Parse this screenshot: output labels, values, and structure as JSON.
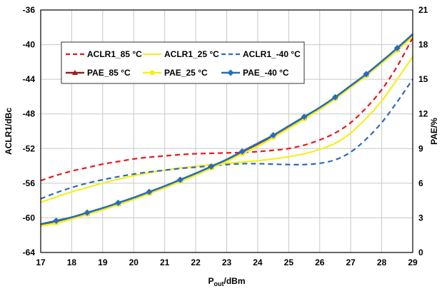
{
  "chart_data": {
    "type": "line",
    "xlabel_main": "P",
    "xlabel_sub": "out",
    "xlabel_rest": "/dBm",
    "ylabel_left": "ACLR1/dBc",
    "ylabel_right": "PAE/%",
    "xlim": [
      17,
      29
    ],
    "ylim_left": [
      -64,
      -36
    ],
    "ylim_right": [
      0,
      21
    ],
    "x_ticks": [
      "17",
      "18",
      "19",
      "20",
      "21",
      "22",
      "23",
      "24",
      "25",
      "26",
      "27",
      "28",
      "29"
    ],
    "y_left_ticks": [
      "-36",
      "-40",
      "-44",
      "-48",
      "-52",
      "-56",
      "-60",
      "-64"
    ],
    "y_right_ticks": [
      "21",
      "18",
      "15",
      "12",
      "9",
      "6",
      "3",
      "0"
    ],
    "grid": true,
    "legend_position": "top-left",
    "x": [
      17,
      17.5,
      18,
      18.5,
      19,
      19.5,
      20,
      20.5,
      21,
      21.5,
      22,
      22.5,
      23,
      23.5,
      24,
      24.5,
      25,
      25.5,
      26,
      26.5,
      27,
      27.5,
      28,
      28.5,
      29
    ],
    "series": [
      {
        "name": "ACLR1_85 °C",
        "axis": "left",
        "color": "#e8171f",
        "style": "dash",
        "marker": "none",
        "values": [
          -55.7,
          -55.1,
          -54.6,
          -54.2,
          -53.8,
          -53.5,
          -53.2,
          -53.0,
          -52.85,
          -52.7,
          -52.6,
          -52.55,
          -52.5,
          -52.45,
          -52.35,
          -52.2,
          -52.0,
          -51.6,
          -51.0,
          -50.2,
          -49.0,
          -47.3,
          -45.2,
          -42.5,
          -39.2
        ]
      },
      {
        "name": "ACLR1_25 °C",
        "axis": "left",
        "color": "#f5ef1e",
        "style": "solid",
        "marker": "none",
        "values": [
          -58.2,
          -57.6,
          -57.0,
          -56.5,
          -56.0,
          -55.55,
          -55.15,
          -54.8,
          -54.5,
          -54.25,
          -54.05,
          -53.85,
          -53.7,
          -53.55,
          -53.4,
          -53.2,
          -52.95,
          -52.6,
          -52.1,
          -51.4,
          -50.2,
          -48.5,
          -46.5,
          -44.0,
          -41.4
        ]
      },
      {
        "name": "ACLR1_-40 °C",
        "axis": "left",
        "color": "#2a6cb8",
        "style": "dash",
        "marker": "none",
        "values": [
          -57.8,
          -57.1,
          -56.5,
          -56.0,
          -55.6,
          -55.25,
          -54.95,
          -54.7,
          -54.5,
          -54.3,
          -54.15,
          -54.0,
          -53.85,
          -53.75,
          -53.75,
          -53.8,
          -53.85,
          -53.85,
          -53.7,
          -53.3,
          -52.4,
          -50.9,
          -49.0,
          -46.6,
          -44.0
        ]
      },
      {
        "name": "PAE_85 °C",
        "axis": "right",
        "color": "#9b1b1e",
        "style": "solid",
        "marker": "triangle",
        "values": [
          2.4,
          2.7,
          3.0,
          3.4,
          3.8,
          4.25,
          4.7,
          5.2,
          5.7,
          6.25,
          6.8,
          7.4,
          8.0,
          8.7,
          9.4,
          10.1,
          10.9,
          11.7,
          12.5,
          13.4,
          14.4,
          15.4,
          16.5,
          17.6,
          18.8
        ]
      },
      {
        "name": "PAE_25 °C",
        "axis": "right",
        "color": "#f5ef1e",
        "style": "solid",
        "marker": "square",
        "values": [
          2.3,
          2.55,
          2.9,
          3.3,
          3.7,
          4.15,
          4.6,
          5.1,
          5.6,
          6.15,
          6.7,
          7.3,
          7.9,
          8.55,
          9.2,
          9.95,
          10.75,
          11.55,
          12.4,
          13.3,
          14.3,
          15.3,
          16.4,
          17.5,
          18.7
        ]
      },
      {
        "name": "PAE_-40 °C",
        "axis": "right",
        "color": "#2a6cb8",
        "style": "solid",
        "marker": "diamond",
        "values": [
          2.45,
          2.75,
          3.05,
          3.45,
          3.85,
          4.3,
          4.75,
          5.25,
          5.75,
          6.3,
          6.85,
          7.45,
          8.05,
          8.75,
          9.45,
          10.15,
          10.95,
          11.75,
          12.55,
          13.45,
          14.45,
          15.45,
          16.55,
          17.7,
          18.9
        ]
      }
    ]
  }
}
